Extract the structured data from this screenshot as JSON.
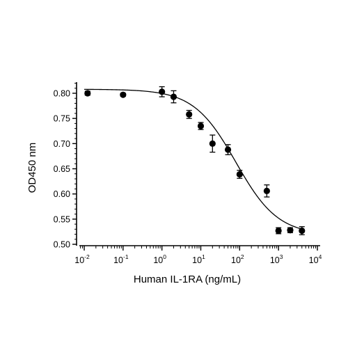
{
  "chart_data": {
    "type": "scatter",
    "title": "",
    "xlabel": "Human IL-1RA (ng/mL)",
    "ylabel": "OD450 nm",
    "x_scale": "log",
    "xlim": [
      0.01,
      10000
    ],
    "ylim": [
      0.5,
      0.82
    ],
    "x_tick_labels": [
      {
        "base": "10",
        "exp": "-2"
      },
      {
        "base": "10",
        "exp": "-1"
      },
      {
        "base": "10",
        "exp": "0"
      },
      {
        "base": "10",
        "exp": "1"
      },
      {
        "base": "10",
        "exp": "2"
      },
      {
        "base": "10",
        "exp": "3"
      },
      {
        "base": "10",
        "exp": "4"
      }
    ],
    "y_tick_labels": [
      "0.50",
      "0.55",
      "0.60",
      "0.65",
      "0.70",
      "0.75",
      "0.80"
    ],
    "y_ticks": [
      0.5,
      0.55,
      0.6,
      0.65,
      0.7,
      0.75,
      0.8
    ],
    "grid": false,
    "legend": "none",
    "series": [
      {
        "marker": "circle",
        "color": "#000000",
        "points": [
          {
            "x": 0.0122,
            "y": 0.8,
            "err": 0.004
          },
          {
            "x": 0.1,
            "y": 0.797,
            "err": 0.003
          },
          {
            "x": 1.0,
            "y": 0.803,
            "err": 0.01
          },
          {
            "x": 2.0,
            "y": 0.793,
            "err": 0.012
          },
          {
            "x": 5.0,
            "y": 0.758,
            "err": 0.008
          },
          {
            "x": 10.0,
            "y": 0.735,
            "err": 0.007
          },
          {
            "x": 20.0,
            "y": 0.7,
            "err": 0.017
          },
          {
            "x": 50.0,
            "y": 0.688,
            "err": 0.01
          },
          {
            "x": 100.0,
            "y": 0.639,
            "err": 0.008
          },
          {
            "x": 500.0,
            "y": 0.606,
            "err": 0.012
          },
          {
            "x": 1000.0,
            "y": 0.527,
            "err": 0.006
          },
          {
            "x": 2000.0,
            "y": 0.528,
            "err": 0.005
          },
          {
            "x": 4000.0,
            "y": 0.527,
            "err": 0.008
          }
        ]
      }
    ],
    "fit_curve": {
      "type": "4PL",
      "color": "#000000",
      "top": 0.808,
      "bottom": 0.518,
      "ec50": 80,
      "hill": 0.8,
      "x_range": [
        0.01,
        4000
      ]
    }
  }
}
